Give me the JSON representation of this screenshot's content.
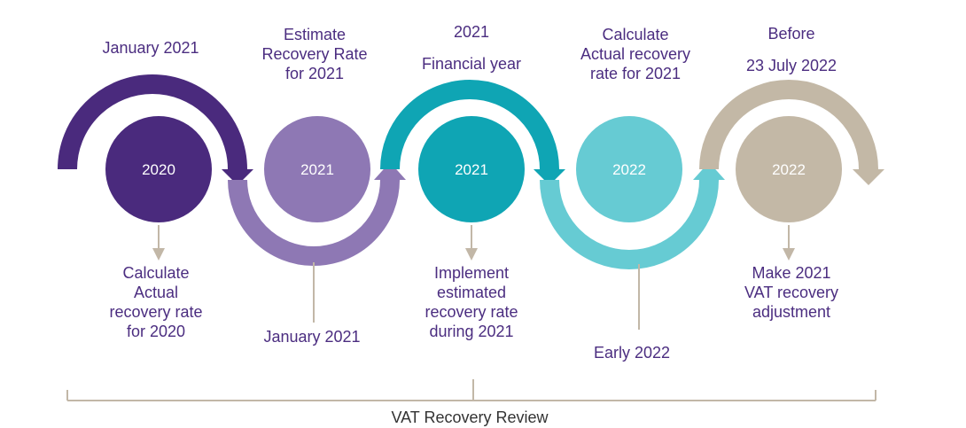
{
  "colors": {
    "purple_dark": "#4a2a7d",
    "purple_light": "#8e78b4",
    "teal_dark": "#0fa5b4",
    "teal_light": "#66cbd3",
    "beige": "#c3b8a6",
    "text": "#4b2d80",
    "connector": "#c2b7a7"
  },
  "circles": [
    {
      "label": "2020",
      "color": "#4a2a7d"
    },
    {
      "label": "2021",
      "color": "#8e78b4"
    },
    {
      "label": "2021",
      "color": "#0fa5b4"
    },
    {
      "label": "2022",
      "color": "#66cbd3"
    },
    {
      "label": "2022",
      "color": "#c3b8a6"
    }
  ],
  "top_labels": [
    "January 2021",
    "Estimate\nRecovery Rate\nfor 2021",
    "2021",
    "Financial year",
    "Calculate\nActual recovery\nrate for 2021",
    "Before",
    "23 July 2022"
  ],
  "bottom_labels": [
    "Calculate\nActual\nrecovery rate\nfor 2020",
    "January 2021",
    "Implement\nestimated\nrecovery rate\nduring 2021",
    "Early 2022",
    "Make 2021\nVAT recovery\nadjustment"
  ],
  "review_label": "VAT Recovery Review"
}
